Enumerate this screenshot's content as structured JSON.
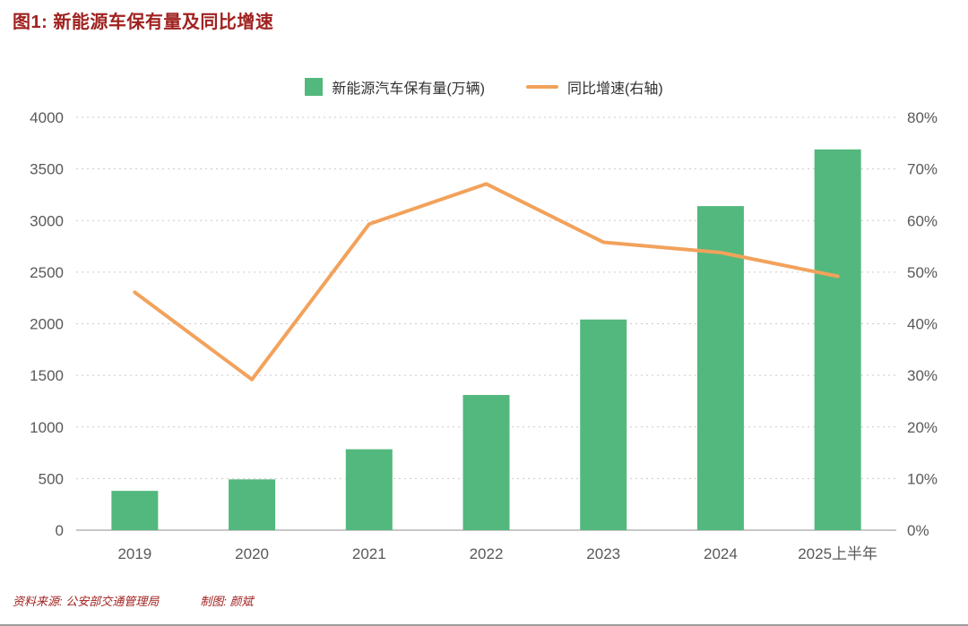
{
  "title": "图1: 新能源车保有量及同比增速",
  "legend": {
    "bar_label": "新能源汽车保有量(万辆)",
    "line_label": "同比增速(右轴)"
  },
  "footer": {
    "source": "资料来源: 公安部交通管理局",
    "credit": "制图: 颜斌"
  },
  "colors": {
    "bar": "#53B87E",
    "line": "#F2A25C",
    "title": "#A02220",
    "axis_text": "#595959",
    "grid": "#C9C9C9",
    "axis_line": "#8F8F8F"
  },
  "chart_data": {
    "type": "bar+line",
    "title": "图1: 新能源车保有量及同比增速",
    "categories": [
      "2019",
      "2020",
      "2021",
      "2022",
      "2023",
      "2024",
      "2025上半年"
    ],
    "series": [
      {
        "name": "新能源汽车保有量(万辆)",
        "type": "bar",
        "axis": "left",
        "values": [
          381,
          492,
          784,
          1310,
          2041,
          3140,
          3689
        ]
      },
      {
        "name": "同比增速(右轴)",
        "type": "line",
        "axis": "right",
        "values": [
          46.1,
          29.2,
          59.3,
          67.1,
          55.8,
          53.8,
          49.2
        ]
      }
    ],
    "left_axis": {
      "min": 0,
      "max": 4000,
      "step": 500
    },
    "right_axis": {
      "min": 0,
      "max": 80,
      "step": 10,
      "suffix": "%"
    },
    "grid": "dotted-horizontal",
    "legend_position": "top-center"
  }
}
